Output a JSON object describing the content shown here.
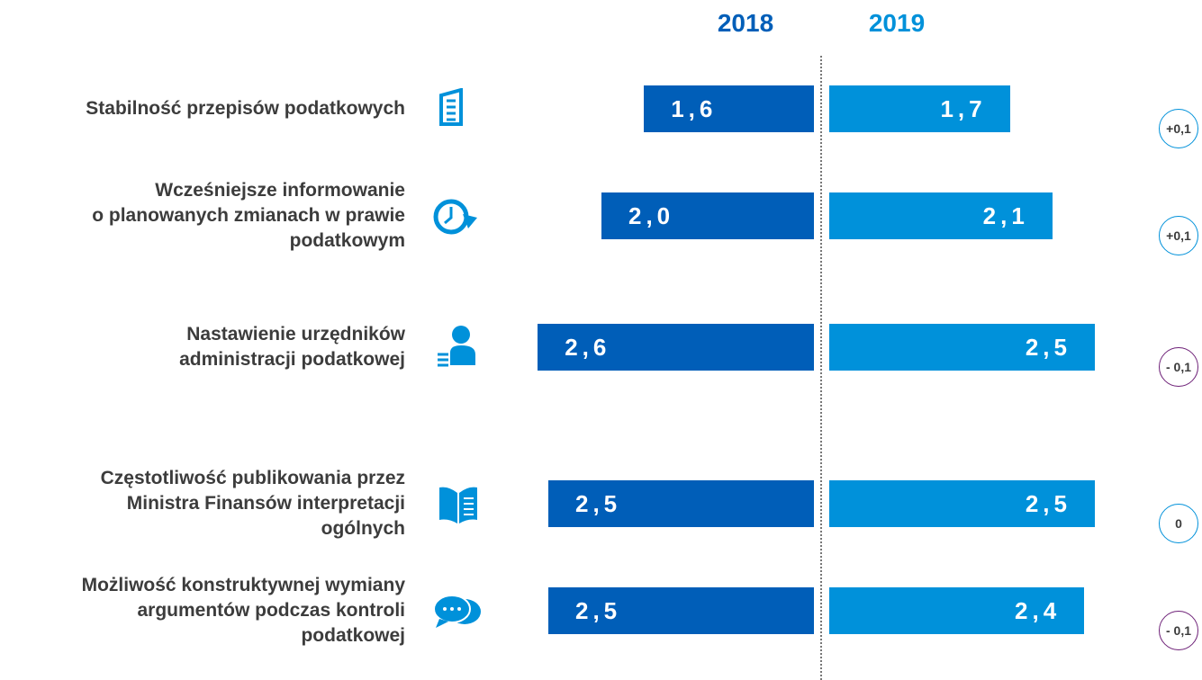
{
  "chart_data": {
    "type": "butterfly-bar",
    "categories": [
      "Stabilność przepisów podatkowych",
      "Wcześniejsze informowanie\no planowanych zmianach w prawie\npodatkowym",
      "Nastawienie urzędników\nadministracji podatkowej",
      "Częstotliwość publikowania przez\nMinistra Finansów interpretacji\nogólnych",
      "Możliwość konstruktywnej wymiany\nargumentów podczas kontroli\npodatkowej"
    ],
    "series": [
      {
        "name": "2018",
        "color": "#005eb8",
        "values": [
          1.6,
          2.0,
          2.6,
          2.5,
          2.5
        ],
        "value_labels": [
          "1,6",
          "2,0",
          "2,6",
          "2,5",
          "2,5"
        ]
      },
      {
        "name": "2019",
        "color": "#0091da",
        "values": [
          1.7,
          2.1,
          2.5,
          2.5,
          2.4
        ],
        "value_labels": [
          "1,7",
          "2,1",
          "2,5",
          "2,5",
          "2,4"
        ]
      }
    ],
    "change": {
      "values": [
        0.1,
        0.1,
        -0.1,
        0,
        -0.1
      ],
      "value_labels": [
        "+0,1",
        "+0,1",
        "- 0,1",
        "0",
        "- 0,1"
      ]
    }
  }
}
